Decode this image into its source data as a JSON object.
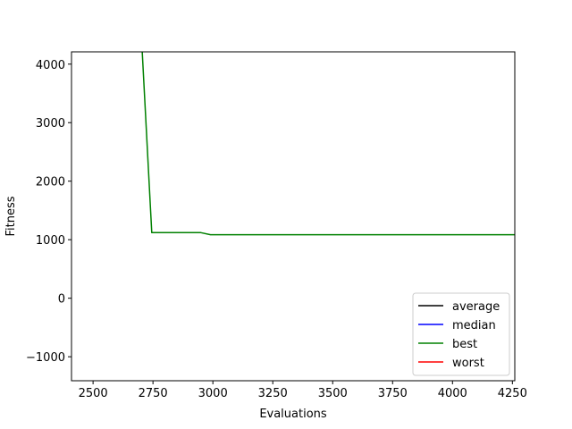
{
  "chart_data": {
    "type": "line",
    "title": "",
    "xlabel": "Evaluations",
    "ylabel": "Fitness",
    "xlim": [
      2410,
      4260
    ],
    "ylim": [
      -1410,
      4210
    ],
    "x_ticks": [
      2500,
      2750,
      3000,
      3250,
      3500,
      3750,
      4000,
      4250
    ],
    "y_ticks": [
      -1000,
      0,
      1000,
      2000,
      3000,
      4000
    ],
    "x_tick_labels": [
      "2500",
      "2750",
      "3000",
      "3250",
      "3500",
      "3750",
      "4000",
      "4250"
    ],
    "y_tick_labels": [
      "−1000",
      "0",
      "1000",
      "2000",
      "3000",
      "4000"
    ],
    "grid": false,
    "legend_position": "lower-right",
    "series": [
      {
        "name": "average",
        "color": "#000000",
        "x": [],
        "y": []
      },
      {
        "name": "median",
        "color": "#0000ff",
        "x": [],
        "y": []
      },
      {
        "name": "best",
        "color": "#008000",
        "x": [
          2700,
          2745,
          2950,
          2990,
          4260
        ],
        "y": [
          4600,
          1120,
          1120,
          1085,
          1085
        ]
      },
      {
        "name": "worst",
        "color": "#ff0000",
        "x": [],
        "y": []
      }
    ]
  }
}
